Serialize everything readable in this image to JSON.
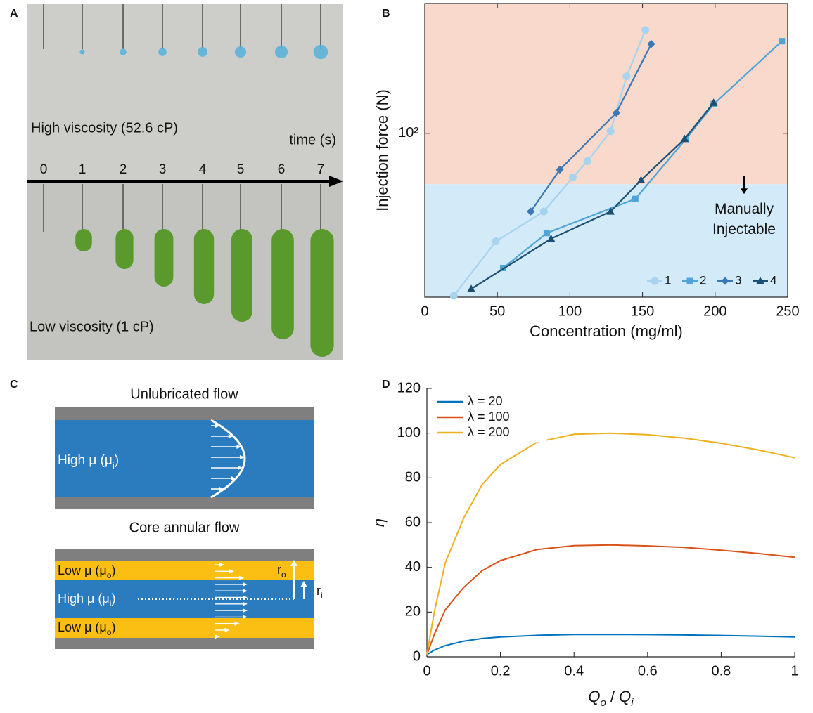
{
  "panel_labels": [
    "A",
    "B",
    "C",
    "D"
  ],
  "photo": {
    "high_label": "High viscosity (52.6 cP)",
    "time_label": "time (s)",
    "times": [
      0,
      1,
      2,
      3,
      4,
      5,
      6,
      7
    ],
    "low_label": "Low viscosity (1 cP)"
  },
  "diagram": {
    "unlubricated_title": "Unlubricated flow",
    "core_title": "Core annular flow",
    "high_mu": [
      "High μ (μ",
      "i",
      ")"
    ],
    "low_mu": [
      "Low μ (μ",
      "o",
      ")"
    ],
    "r_o": [
      "r",
      "o"
    ],
    "r_i": [
      "r",
      "i"
    ]
  },
  "chart_data": [
    {
      "type": "line",
      "xlabel": "Concentration (mg/ml)",
      "ylabel": "Injection force (N)",
      "xlim": [
        0,
        250
      ],
      "xticks": [
        0,
        50,
        100,
        150,
        200,
        250
      ],
      "ylim": [
        25,
        300
      ],
      "yscale": "log",
      "yticks": [
        {
          "value": 100,
          "label": "10²"
        }
      ],
      "threshold": 65,
      "region_colors": [
        "#d3ebf8",
        "#f8d9cc"
      ],
      "annotation": [
        "Manually",
        "Injectable"
      ],
      "legend": "lower right",
      "series": [
        {
          "name": "1",
          "color": "#a6d3ee",
          "marker": "circle",
          "x": [
            20,
            49,
            82,
            102,
            112,
            128,
            139,
            152
          ],
          "values": [
            25.3,
            40.1,
            51.6,
            68.9,
            79,
            101.8,
            162,
            239.5
          ]
        },
        {
          "name": "2",
          "color": "#4ea3d8",
          "marker": "square",
          "x": [
            54,
            84,
            145,
            180,
            199,
            246
          ],
          "values": [
            32,
            43,
            57.4,
            95.4,
            128,
            218
          ]
        },
        {
          "name": "3",
          "color": "#3c78b4",
          "marker": "diamond",
          "x": [
            73,
            93,
            132,
            156
          ],
          "values": [
            51.6,
            73.5,
            119,
            213
          ]
        },
        {
          "name": "4",
          "color": "#1d4f73",
          "marker": "triangle",
          "x": [
            32,
            87,
            128,
            149,
            179,
            199
          ],
          "values": [
            26.8,
            41,
            51.6,
            67.3,
            95.4,
            129.6
          ]
        }
      ]
    },
    {
      "type": "line",
      "xlabel": [
        "Q",
        "o",
        " / ",
        "Q",
        "i"
      ],
      "ylabel": "η",
      "xlim": [
        0,
        1
      ],
      "xticks": [
        0,
        0.2,
        0.4,
        0.6,
        0.8,
        1
      ],
      "ylim": [
        0,
        120
      ],
      "yticks": [
        0,
        20,
        40,
        60,
        80,
        100,
        120
      ],
      "legend": "upper left",
      "x": [
        0,
        0.02,
        0.05,
        0.1,
        0.15,
        0.2,
        0.3,
        0.4,
        0.5,
        0.6,
        0.7,
        0.8,
        0.9,
        1
      ],
      "series": [
        {
          "name": "λ = 20",
          "color": "#0072bd",
          "values": [
            1,
            3,
            5,
            7,
            8.2,
            8.9,
            9.6,
            9.95,
            10,
            9.93,
            9.78,
            9.55,
            9.25,
            8.9
          ]
        },
        {
          "name": "λ = 100",
          "color": "#d95319",
          "values": [
            1,
            10,
            21,
            31,
            38.5,
            43,
            48,
            49.7,
            50,
            49.6,
            48.9,
            47.7,
            46.2,
            44.5
          ]
        },
        {
          "name": "λ = 200",
          "color": "#edb120",
          "values": [
            1,
            20,
            42,
            62,
            77,
            86,
            96,
            99.5,
            100,
            99.3,
            97.8,
            95.5,
            92.5,
            89
          ]
        }
      ]
    }
  ]
}
